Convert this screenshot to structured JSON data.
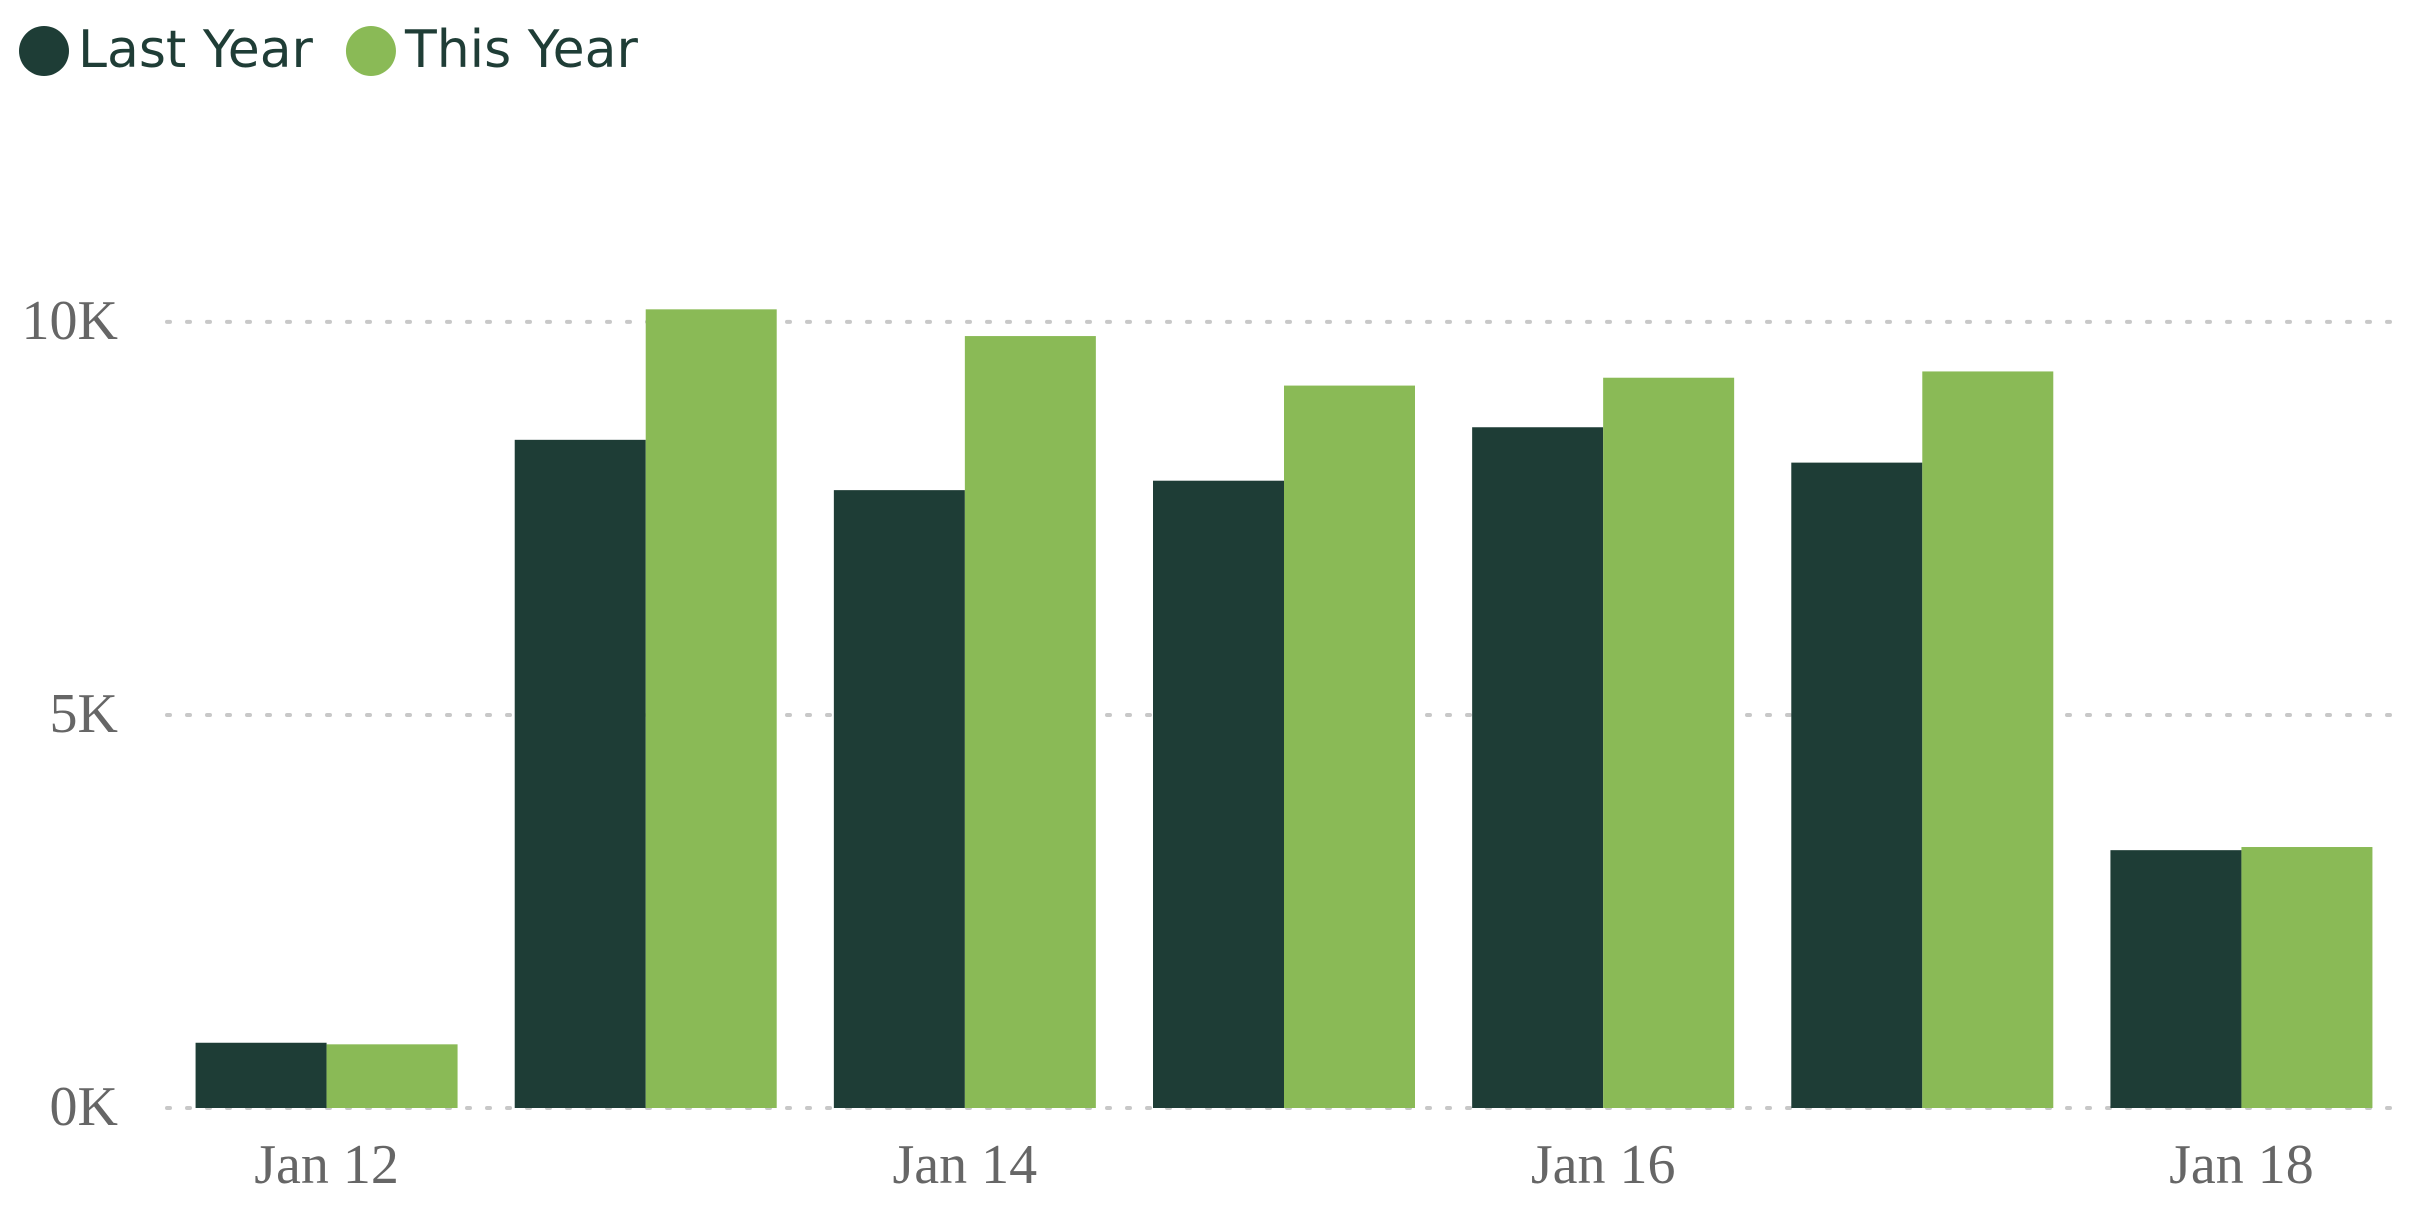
{
  "chart_data": {
    "type": "bar",
    "categories": [
      "Jan 12",
      null,
      "Jan 14",
      null,
      "Jan 16",
      null,
      "Jan 18"
    ],
    "series": [
      {
        "name": "Last Year",
        "color": "#1e3d36",
        "values": [
          830,
          8500,
          7860,
          7980,
          8660,
          8210,
          3280
        ]
      },
      {
        "name": "This Year",
        "color": "#8aba56",
        "values": [
          810,
          10160,
          9820,
          9190,
          9290,
          9370,
          3320
        ]
      }
    ],
    "ylim": [
      0,
      11500
    ],
    "yticks": [
      {
        "value": 0,
        "label": "0K"
      },
      {
        "value": 5000,
        "label": "5K"
      },
      {
        "value": 10000,
        "label": "10K"
      }
    ],
    "grid": true,
    "legend": "top-left"
  }
}
